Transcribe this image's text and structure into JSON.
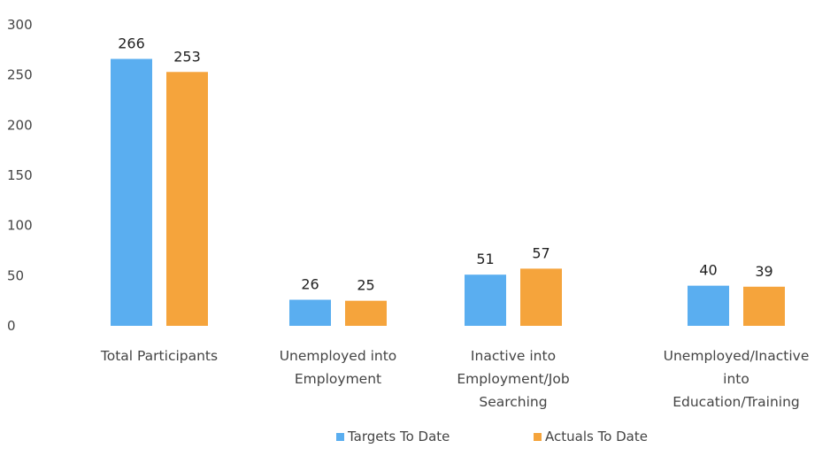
{
  "chart_data": {
    "type": "bar",
    "title": "",
    "xlabel": "",
    "ylabel": "",
    "ylim": [
      0,
      300
    ],
    "yticks": [
      0,
      50,
      100,
      150,
      200,
      250,
      300
    ],
    "ytick_labels": [
      "0",
      "50",
      "100",
      "150",
      "200",
      "250",
      "300"
    ],
    "grid": false,
    "legend_position": "bottom",
    "categories": [
      [
        "Total Participants"
      ],
      [
        "Unemployed into",
        "Employment"
      ],
      [
        "Inactive into",
        "Employment/Job",
        "Searching"
      ],
      [
        "Unemployed/Inactive",
        "into",
        "Education/Training"
      ]
    ],
    "series": [
      {
        "name": "Targets To Date",
        "color": "#5aaef0",
        "values": [
          266,
          26,
          51,
          40
        ]
      },
      {
        "name": "Actuals To Date",
        "color": "#f5a43c",
        "values": [
          253,
          25,
          57,
          39
        ]
      }
    ]
  }
}
